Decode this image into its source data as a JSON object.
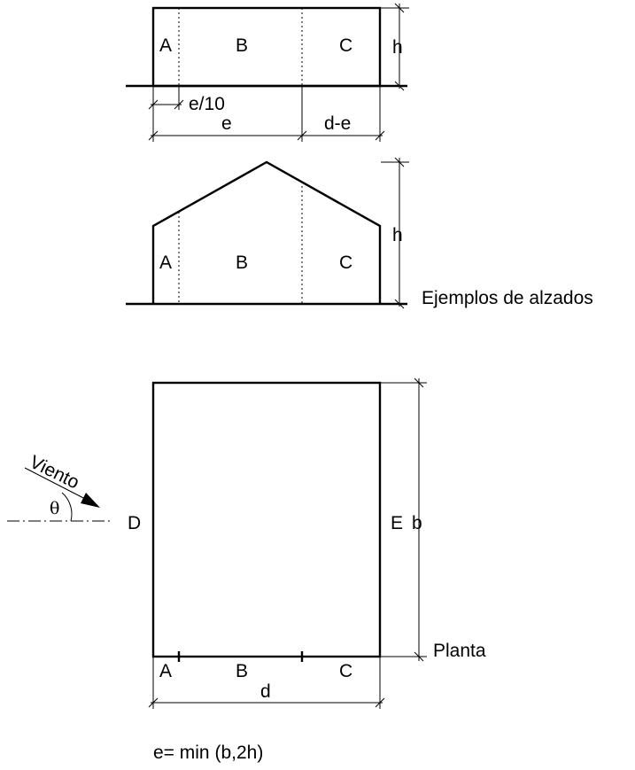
{
  "elevation_flat": {
    "zone_a": "A",
    "zone_b": "B",
    "zone_c": "C",
    "height": "h",
    "dim_e10": "e/10",
    "dim_e": "e",
    "dim_de": "d-e"
  },
  "elevation_gable": {
    "zone_a": "A",
    "zone_b": "B",
    "zone_c": "C",
    "height": "h",
    "caption": "Ejemplos de alzados"
  },
  "plan": {
    "wind_label": "Viento",
    "angle": "θ",
    "face_d": "D",
    "face_e": "E",
    "width": "b",
    "caption": "Planta",
    "zone_a": "A",
    "zone_b": "B",
    "zone_c": "C",
    "depth": "d"
  },
  "formula": "e= min (b,2h)"
}
